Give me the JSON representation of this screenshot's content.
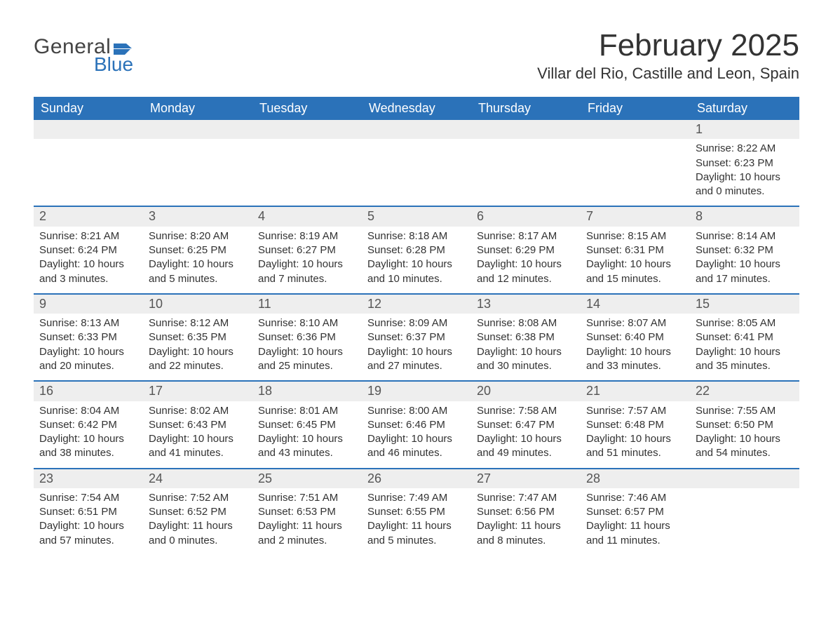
{
  "brand": {
    "text_general": "General",
    "text_blue": "Blue",
    "flag_color": "#2b72b9"
  },
  "title": "February 2025",
  "location": "Villar del Rio, Castille and Leon, Spain",
  "colors": {
    "header_bg": "#2b72b9",
    "header_text": "#ffffff",
    "daynum_bg": "#eeeeee",
    "row_border": "#2b72b9",
    "body_bg": "#ffffff",
    "text": "#333333"
  },
  "weekdays": [
    "Sunday",
    "Monday",
    "Tuesday",
    "Wednesday",
    "Thursday",
    "Friday",
    "Saturday"
  ],
  "labels": {
    "sunrise": "Sunrise:",
    "sunset": "Sunset:",
    "daylight": "Daylight:"
  },
  "weeks": [
    [
      {
        "day": "",
        "sunrise": "",
        "sunset": "",
        "daylight": ""
      },
      {
        "day": "",
        "sunrise": "",
        "sunset": "",
        "daylight": ""
      },
      {
        "day": "",
        "sunrise": "",
        "sunset": "",
        "daylight": ""
      },
      {
        "day": "",
        "sunrise": "",
        "sunset": "",
        "daylight": ""
      },
      {
        "day": "",
        "sunrise": "",
        "sunset": "",
        "daylight": ""
      },
      {
        "day": "",
        "sunrise": "",
        "sunset": "",
        "daylight": ""
      },
      {
        "day": "1",
        "sunrise": "8:22 AM",
        "sunset": "6:23 PM",
        "daylight": "10 hours and 0 minutes."
      }
    ],
    [
      {
        "day": "2",
        "sunrise": "8:21 AM",
        "sunset": "6:24 PM",
        "daylight": "10 hours and 3 minutes."
      },
      {
        "day": "3",
        "sunrise": "8:20 AM",
        "sunset": "6:25 PM",
        "daylight": "10 hours and 5 minutes."
      },
      {
        "day": "4",
        "sunrise": "8:19 AM",
        "sunset": "6:27 PM",
        "daylight": "10 hours and 7 minutes."
      },
      {
        "day": "5",
        "sunrise": "8:18 AM",
        "sunset": "6:28 PM",
        "daylight": "10 hours and 10 minutes."
      },
      {
        "day": "6",
        "sunrise": "8:17 AM",
        "sunset": "6:29 PM",
        "daylight": "10 hours and 12 minutes."
      },
      {
        "day": "7",
        "sunrise": "8:15 AM",
        "sunset": "6:31 PM",
        "daylight": "10 hours and 15 minutes."
      },
      {
        "day": "8",
        "sunrise": "8:14 AM",
        "sunset": "6:32 PM",
        "daylight": "10 hours and 17 minutes."
      }
    ],
    [
      {
        "day": "9",
        "sunrise": "8:13 AM",
        "sunset": "6:33 PM",
        "daylight": "10 hours and 20 minutes."
      },
      {
        "day": "10",
        "sunrise": "8:12 AM",
        "sunset": "6:35 PM",
        "daylight": "10 hours and 22 minutes."
      },
      {
        "day": "11",
        "sunrise": "8:10 AM",
        "sunset": "6:36 PM",
        "daylight": "10 hours and 25 minutes."
      },
      {
        "day": "12",
        "sunrise": "8:09 AM",
        "sunset": "6:37 PM",
        "daylight": "10 hours and 27 minutes."
      },
      {
        "day": "13",
        "sunrise": "8:08 AM",
        "sunset": "6:38 PM",
        "daylight": "10 hours and 30 minutes."
      },
      {
        "day": "14",
        "sunrise": "8:07 AM",
        "sunset": "6:40 PM",
        "daylight": "10 hours and 33 minutes."
      },
      {
        "day": "15",
        "sunrise": "8:05 AM",
        "sunset": "6:41 PM",
        "daylight": "10 hours and 35 minutes."
      }
    ],
    [
      {
        "day": "16",
        "sunrise": "8:04 AM",
        "sunset": "6:42 PM",
        "daylight": "10 hours and 38 minutes."
      },
      {
        "day": "17",
        "sunrise": "8:02 AM",
        "sunset": "6:43 PM",
        "daylight": "10 hours and 41 minutes."
      },
      {
        "day": "18",
        "sunrise": "8:01 AM",
        "sunset": "6:45 PM",
        "daylight": "10 hours and 43 minutes."
      },
      {
        "day": "19",
        "sunrise": "8:00 AM",
        "sunset": "6:46 PM",
        "daylight": "10 hours and 46 minutes."
      },
      {
        "day": "20",
        "sunrise": "7:58 AM",
        "sunset": "6:47 PM",
        "daylight": "10 hours and 49 minutes."
      },
      {
        "day": "21",
        "sunrise": "7:57 AM",
        "sunset": "6:48 PM",
        "daylight": "10 hours and 51 minutes."
      },
      {
        "day": "22",
        "sunrise": "7:55 AM",
        "sunset": "6:50 PM",
        "daylight": "10 hours and 54 minutes."
      }
    ],
    [
      {
        "day": "23",
        "sunrise": "7:54 AM",
        "sunset": "6:51 PM",
        "daylight": "10 hours and 57 minutes."
      },
      {
        "day": "24",
        "sunrise": "7:52 AM",
        "sunset": "6:52 PM",
        "daylight": "11 hours and 0 minutes."
      },
      {
        "day": "25",
        "sunrise": "7:51 AM",
        "sunset": "6:53 PM",
        "daylight": "11 hours and 2 minutes."
      },
      {
        "day": "26",
        "sunrise": "7:49 AM",
        "sunset": "6:55 PM",
        "daylight": "11 hours and 5 minutes."
      },
      {
        "day": "27",
        "sunrise": "7:47 AM",
        "sunset": "6:56 PM",
        "daylight": "11 hours and 8 minutes."
      },
      {
        "day": "28",
        "sunrise": "7:46 AM",
        "sunset": "6:57 PM",
        "daylight": "11 hours and 11 minutes."
      },
      {
        "day": "",
        "sunrise": "",
        "sunset": "",
        "daylight": ""
      }
    ]
  ]
}
